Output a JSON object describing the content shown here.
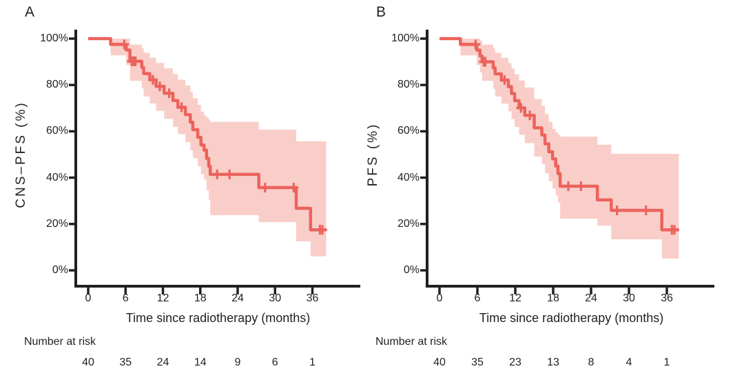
{
  "figure": {
    "background": "#ffffff",
    "text_color": "#231f20",
    "axis_color": "#231f20",
    "line_color": "#EC635C",
    "band_color": "#F9CEC9"
  },
  "chart_data": [
    {
      "type": "line",
      "subtype": "kaplan-meier-step",
      "panel_label": "A",
      "ylabel": "CNS–PFS (%)",
      "xlabel": "Time since radiotherapy (months)",
      "xlim": [
        0,
        39
      ],
      "ylim": [
        0,
        100
      ],
      "grid": false,
      "x_ticks": [
        0,
        6,
        12,
        18,
        24,
        30,
        36
      ],
      "y_ticks": [
        "100%",
        "80%",
        "60%",
        "40%",
        "20%",
        "0%"
      ],
      "y_tick_values": [
        100,
        80,
        60,
        40,
        20,
        0
      ],
      "series": [
        {
          "name": "CNS-PFS",
          "segments": [
            [
              0,
              3.6,
              100,
              100,
              100
            ],
            [
              3.6,
              6.1,
              97.5,
              92.8,
              100
            ],
            [
              6.1,
              6.7,
              95.1,
              88.6,
              100
            ],
            [
              6.7,
              8.6,
              90.2,
              81.8,
              97.4
            ],
            [
              8.6,
              8.9,
              87.6,
              78.5,
              95.8
            ],
            [
              8.9,
              9.9,
              84.9,
              75.1,
              93.9
            ],
            [
              9.9,
              10.9,
              82.2,
              72.0,
              91.8
            ],
            [
              10.9,
              12.2,
              79.4,
              68.8,
              89.5
            ],
            [
              12.2,
              13.6,
              76.4,
              65.4,
              87.2
            ],
            [
              13.6,
              14.4,
              73.3,
              61.9,
              84.7
            ],
            [
              14.4,
              15.6,
              70.4,
              58.8,
              82.3
            ],
            [
              15.6,
              16.4,
              67.2,
              55.3,
              79.8
            ],
            [
              16.4,
              16.8,
              63.9,
              51.8,
              77.1
            ],
            [
              16.8,
              17.6,
              60.7,
              48.4,
              74.3
            ],
            [
              17.6,
              18.1,
              57.4,
              44.9,
              71.4
            ],
            [
              18.1,
              18.6,
              54.1,
              41.5,
              68.5
            ],
            [
              18.6,
              19.0,
              51.9,
              39.2,
              66.8
            ],
            [
              19.0,
              19.35,
              48.3,
              34.5,
              66.0
            ],
            [
              19.35,
              19.6,
              44.9,
              30.5,
              65.0
            ],
            [
              19.6,
              27.4,
              41.4,
              23.8,
              64.1
            ],
            [
              27.4,
              33.4,
              35.7,
              20.8,
              60.7
            ],
            [
              33.4,
              35.7,
              26.8,
              12.5,
              55.7
            ],
            [
              35.7,
              38.2,
              17.5,
              6.0,
              55.7
            ]
          ],
          "censors": [
            [
              5.8,
              97.5
            ],
            [
              7.0,
              90.2
            ],
            [
              7.3,
              90.2
            ],
            [
              7.6,
              90.2
            ],
            [
              10.4,
              82.2
            ],
            [
              11.5,
              79.4
            ],
            [
              13.0,
              76.4
            ],
            [
              15.0,
              70.4
            ],
            [
              20.7,
              41.4
            ],
            [
              22.7,
              41.4
            ],
            [
              28.4,
              35.7
            ],
            [
              33.0,
              35.7
            ],
            [
              37.2,
              17.5
            ],
            [
              37.6,
              17.5
            ]
          ]
        }
      ],
      "number_at_risk": {
        "label": "Number at risk",
        "times": [
          0,
          6,
          12,
          18,
          24,
          30,
          36
        ],
        "values": [
          40,
          35,
          24,
          14,
          9,
          6,
          1
        ]
      }
    },
    {
      "type": "line",
      "subtype": "kaplan-meier-step",
      "panel_label": "B",
      "ylabel": "PFS (%)",
      "xlabel": "Time since radiotherapy (months)",
      "xlim": [
        0,
        39
      ],
      "ylim": [
        0,
        100
      ],
      "grid": false,
      "x_ticks": [
        0,
        6,
        12,
        18,
        24,
        30,
        36
      ],
      "y_ticks": [
        "100%",
        "80%",
        "60%",
        "40%",
        "20%",
        "0%"
      ],
      "y_tick_values": [
        100,
        80,
        60,
        40,
        20,
        0
      ],
      "series": [
        {
          "name": "PFS",
          "segments": [
            [
              0,
              3.3,
              100,
              100,
              100
            ],
            [
              3.3,
              5.9,
              97.5,
              92.8,
              100
            ],
            [
              5.9,
              6.4,
              95.0,
              88.6,
              100
            ],
            [
              6.4,
              6.75,
              92.5,
              85.4,
              99.2
            ],
            [
              6.75,
              8.5,
              90.0,
              81.8,
              97.4
            ],
            [
              8.5,
              8.8,
              87.4,
              78.3,
              95.7
            ],
            [
              8.8,
              9.8,
              84.8,
              75.0,
              93.8
            ],
            [
              9.8,
              10.9,
              82.1,
              71.9,
              91.7
            ],
            [
              10.9,
              11.4,
              79.3,
              68.7,
              89.4
            ],
            [
              11.4,
              11.9,
              76.3,
              65.3,
              87.1
            ],
            [
              11.9,
              12.6,
              73.2,
              61.9,
              84.6
            ],
            [
              12.6,
              13.5,
              70.1,
              58.5,
              81.9
            ],
            [
              13.5,
              15.0,
              66.9,
              54.9,
              78.9
            ],
            [
              15.0,
              16.2,
              61.5,
              49.1,
              74.0
            ],
            [
              16.2,
              16.7,
              58.4,
              45.8,
              71.0
            ],
            [
              16.7,
              17.3,
              54.6,
              41.9,
              67.4
            ],
            [
              17.3,
              17.9,
              51.2,
              38.4,
              64.1
            ],
            [
              17.9,
              18.4,
              48.1,
              35.3,
              61.0
            ],
            [
              18.4,
              18.75,
              45.0,
              32.3,
              59.5
            ],
            [
              18.75,
              19.1,
              41.8,
              29.2,
              58.5
            ],
            [
              19.1,
              25.0,
              36.3,
              22.3,
              57.7
            ],
            [
              25.0,
              27.2,
              30.4,
              19.3,
              54.2
            ],
            [
              27.2,
              35.2,
              25.9,
              13.4,
              50.3
            ],
            [
              35.2,
              37.9,
              17.5,
              5.1,
              50.3
            ]
          ],
          "censors": [
            [
              5.7,
              97.5
            ],
            [
              7.0,
              90.0
            ],
            [
              7.25,
              90.0
            ],
            [
              10.3,
              82.1
            ],
            [
              12.9,
              70.1
            ],
            [
              14.3,
              66.9
            ],
            [
              20.4,
              36.3
            ],
            [
              22.4,
              36.3
            ],
            [
              28.1,
              25.9
            ],
            [
              32.7,
              25.9
            ],
            [
              36.8,
              17.5
            ],
            [
              37.2,
              17.5
            ]
          ]
        }
      ],
      "number_at_risk": {
        "label": "Number at risk",
        "times": [
          0,
          6,
          12,
          18,
          24,
          30,
          36
        ],
        "values": [
          40,
          35,
          23,
          13,
          8,
          4,
          1
        ]
      }
    }
  ]
}
